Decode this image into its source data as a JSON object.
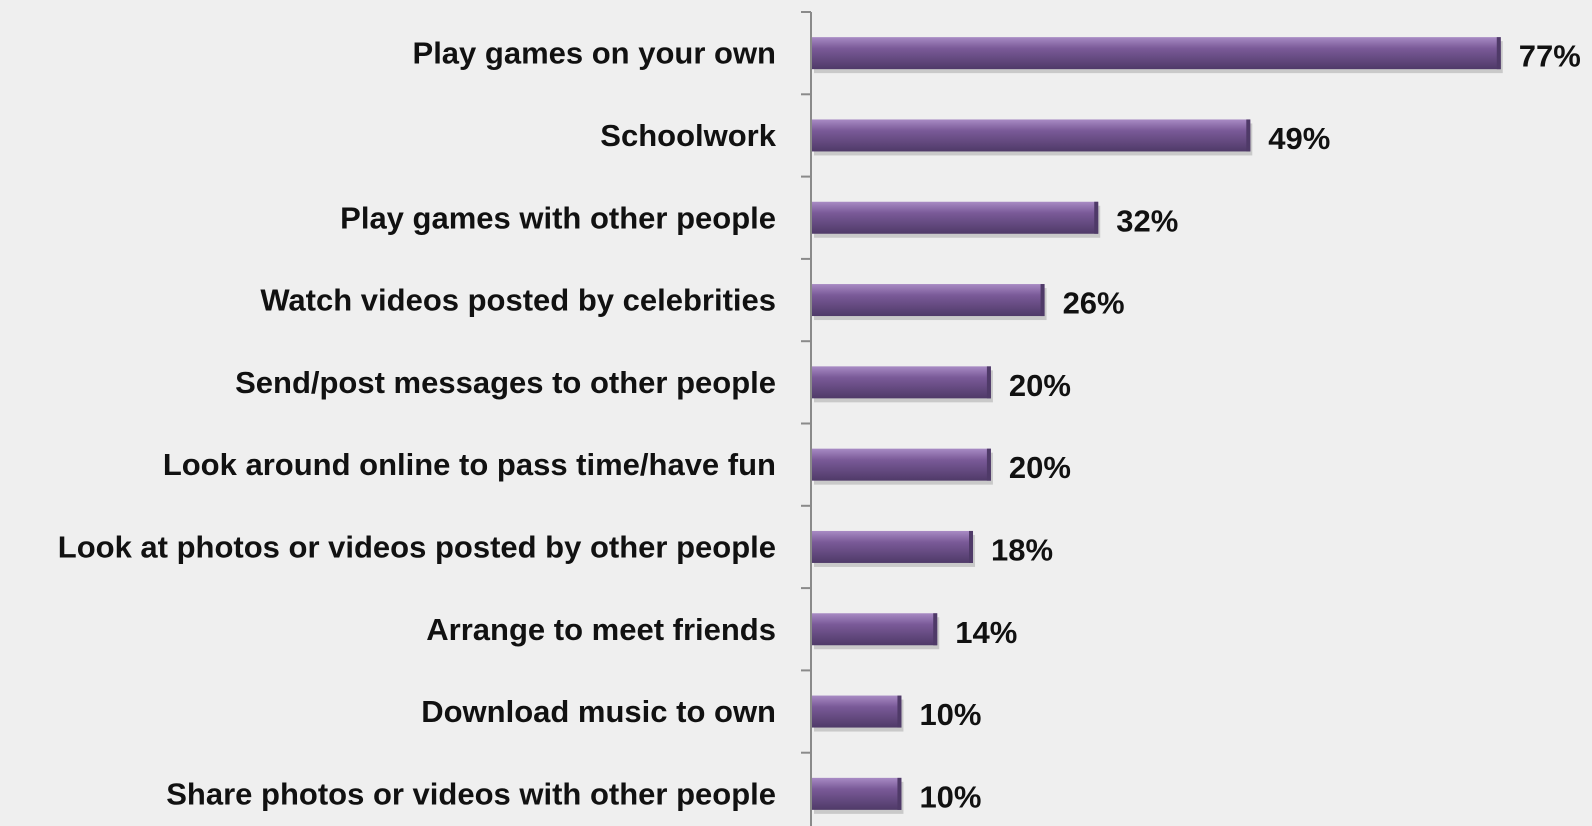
{
  "chart_data": {
    "type": "bar",
    "orientation": "horizontal",
    "categories": [
      "Play games on your own",
      "Schoolwork",
      "Play games with other people",
      "Watch videos posted by celebrities",
      "Send/post messages to other people",
      "Look around online to pass time/have fun",
      "Look at photos or videos posted by other people",
      "Arrange to meet friends",
      "Download music to own",
      "Share photos or videos with other people"
    ],
    "values": [
      77,
      49,
      32,
      26,
      20,
      20,
      18,
      14,
      10,
      10
    ],
    "value_labels": [
      "77%",
      "49%",
      "32%",
      "26%",
      "20%",
      "20%",
      "18%",
      "14%",
      "10%",
      "10%"
    ],
    "value_unit": "%",
    "xlim": [
      0,
      100
    ],
    "grid": false,
    "legend": "none",
    "title": "",
    "xlabel": "",
    "ylabel": ""
  },
  "colors": {
    "bar": "#7a5a98",
    "bar_highlight": "#a88bc4",
    "bar_shadow": "#4f3a68",
    "axis": "#8a8a8a",
    "background": "#efefef",
    "text": "#111111"
  }
}
